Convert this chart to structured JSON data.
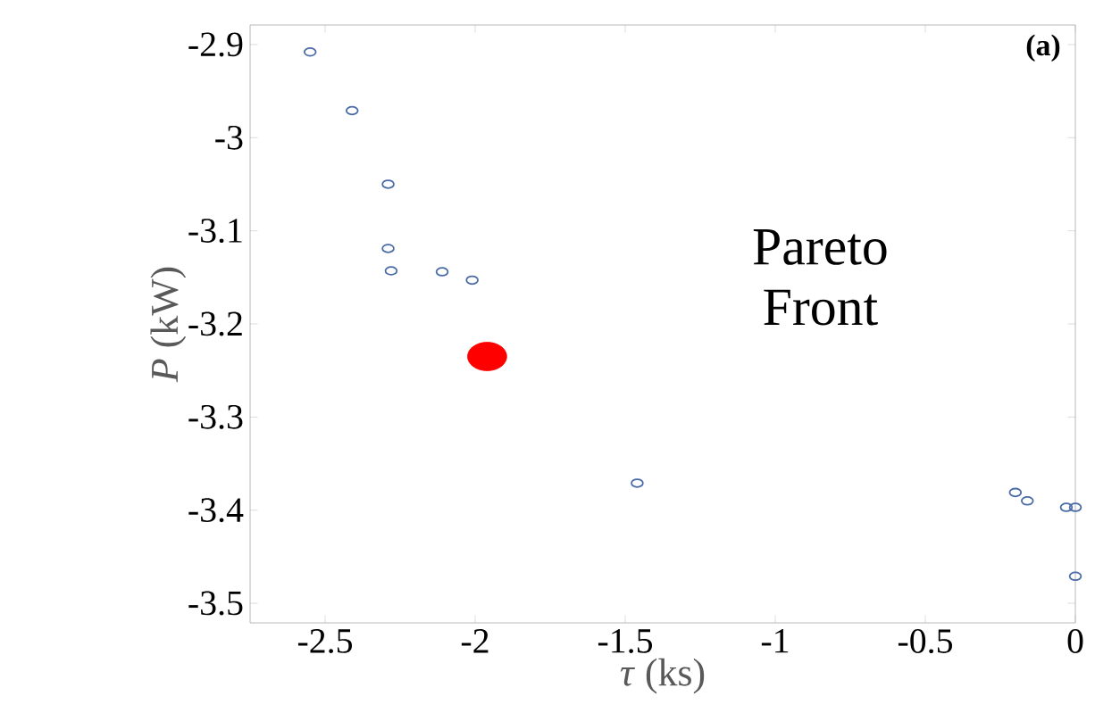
{
  "chart_data": {
    "type": "scatter",
    "xlabel": "*τ* (ks)",
    "ylabel": "*P* (kW)",
    "annotations": [
      "Pareto Front",
      "**(a)**"
    ],
    "series": [
      {
        "color": "#4a6aa8",
        "x": [
          -2.55,
          -2.41,
          -2.29,
          -2.29,
          -2.28,
          -2.11,
          -2.01,
          -1.46,
          -0.2,
          -0.16,
          -0.03,
          0.0,
          0.0
        ],
        "values": [
          -2.908,
          -2.971,
          -3.05,
          -3.119,
          -3.143,
          -3.144,
          -3.153,
          -3.371,
          -3.381,
          -3.39,
          -3.397,
          -3.397,
          -3.471
        ]
      },
      {
        "color": "#ff0000",
        "x": [
          -1.96
        ],
        "values": [
          -3.235
        ]
      }
    ],
    "marker": "circle",
    "grid": false,
    "xlim": [
      -2.75,
      0
    ],
    "ylim": [
      -3.521,
      -2.879
    ],
    "xticks": [
      -2.5,
      -2,
      -1.5,
      -1,
      -0.5,
      0
    ],
    "yticks": [
      -3.5,
      -3.4,
      -3.3,
      -3.2,
      -3.1,
      -3,
      -2.9
    ]
  }
}
